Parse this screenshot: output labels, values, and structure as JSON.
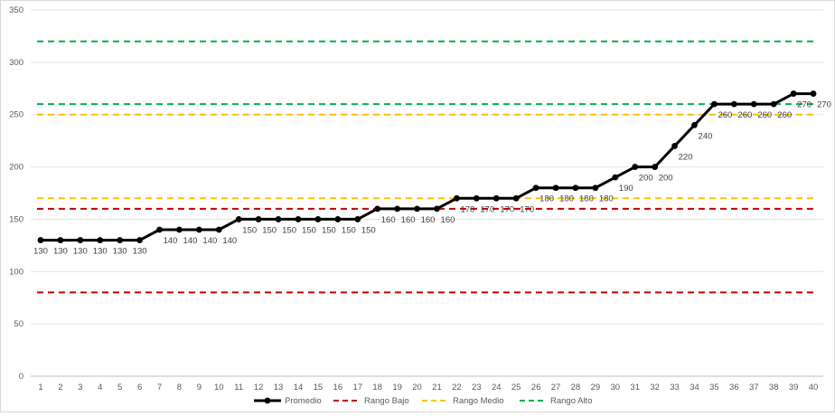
{
  "chart_data": {
    "type": "line",
    "title": "",
    "xlabel": "",
    "ylabel": "",
    "x": [
      1,
      2,
      3,
      4,
      5,
      6,
      7,
      8,
      9,
      10,
      11,
      12,
      13,
      14,
      15,
      16,
      17,
      18,
      19,
      20,
      21,
      22,
      23,
      24,
      25,
      26,
      27,
      28,
      29,
      30,
      31,
      32,
      33,
      34,
      35,
      36,
      37,
      38,
      39,
      40
    ],
    "ylim": [
      0,
      350
    ],
    "yticks": [
      0,
      50,
      100,
      150,
      200,
      250,
      300,
      350
    ],
    "grid": "horizontal",
    "legend_position": "bottom",
    "series": [
      {
        "name": "Promedio",
        "style": "solid-markers",
        "color": "#000000",
        "show_labels": true,
        "values": [
          130,
          130,
          130,
          130,
          130,
          130,
          140,
          140,
          140,
          140,
          150,
          150,
          150,
          150,
          150,
          150,
          150,
          160,
          160,
          160,
          160,
          170,
          170,
          170,
          170,
          180,
          180,
          180,
          180,
          190,
          200,
          200,
          220,
          240,
          260,
          260,
          260,
          260,
          270,
          270
        ]
      },
      {
        "name": "Rango Bajo",
        "style": "dashed",
        "color": "#c00000",
        "lines": [
          80,
          160
        ]
      },
      {
        "name": "Rango Medio",
        "style": "dashed",
        "color": "#ffc000",
        "lines": [
          170,
          250
        ]
      },
      {
        "name": "Rango Alto",
        "style": "dashed",
        "color": "#00b050",
        "lines": [
          260,
          320
        ]
      }
    ]
  }
}
